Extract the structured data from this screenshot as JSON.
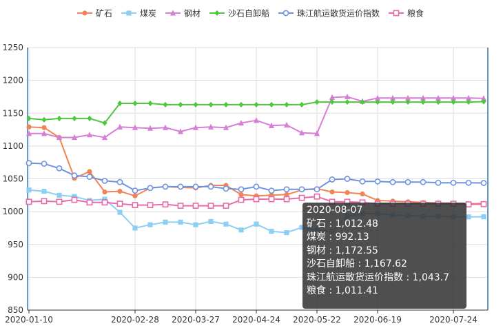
{
  "chart_data": {
    "type": "line",
    "x": [
      "2020-01-10",
      "2020-01-17",
      "2020-01-24",
      "2020-01-31",
      "2020-02-07",
      "2020-02-14",
      "2020-02-21",
      "2020-02-28",
      "2020-03-06",
      "2020-03-13",
      "2020-03-20",
      "2020-03-27",
      "2020-04-03",
      "2020-04-10",
      "2020-04-17",
      "2020-04-24",
      "2020-05-01",
      "2020-05-08",
      "2020-05-15",
      "2020-05-22",
      "2020-05-29",
      "2020-06-05",
      "2020-06-12",
      "2020-06-19",
      "2020-06-26",
      "2020-07-03",
      "2020-07-10",
      "2020-07-17",
      "2020-07-24",
      "2020-07-31",
      "2020-08-07"
    ],
    "x_tick_labels": [
      "2020-01-10",
      "2020-02-28",
      "2020-03-27",
      "2020-04-24",
      "2020-05-22",
      "2020-06-19",
      "2020-07-24"
    ],
    "ylim": [
      850,
      1250
    ],
    "y_ticks": [
      850,
      900,
      950,
      1000,
      1050,
      1100,
      1150,
      1200,
      1250
    ],
    "legend_position": "top-center",
    "grid": true,
    "series": [
      {
        "name": "矿石",
        "color": "#f08454",
        "marker": "circle-filled",
        "values": [
          1129,
          1128,
          1113,
          1051,
          1061,
          1030,
          1031,
          1024,
          1036,
          1038,
          1037,
          1036,
          1040,
          1040,
          1026,
          1024,
          1025,
          1026,
          1033,
          1035,
          1030,
          1029,
          1027,
          1017,
          1016,
          1015,
          1014,
          1013,
          1013,
          1012,
          1012.48
        ]
      },
      {
        "name": "煤炭",
        "color": "#8ccff5",
        "marker": "square",
        "values": [
          1033,
          1031,
          1025,
          1023,
          1017,
          1019,
          999,
          975,
          980,
          984,
          984,
          980,
          985,
          981,
          972,
          981,
          970,
          968,
          976,
          972,
          970,
          993,
          997,
          997,
          995,
          994,
          993,
          993,
          992,
          992,
          992.13
        ]
      },
      {
        "name": "钢材",
        "color": "#d77ed6",
        "marker": "triangle",
        "values": [
          1119,
          1119,
          1113,
          1113,
          1117,
          1113,
          1129,
          1128,
          1127,
          1128,
          1122,
          1128,
          1129,
          1128,
          1135,
          1139,
          1131,
          1132,
          1120,
          1119,
          1174,
          1175,
          1168,
          1173,
          1173,
          1173,
          1173,
          1173,
          1173,
          1173,
          1172.55
        ]
      },
      {
        "name": "沙石自卸船",
        "color": "#4cc83c",
        "marker": "diamond",
        "values": [
          1142,
          1140,
          1142,
          1142,
          1142,
          1135,
          1165,
          1165,
          1165,
          1163,
          1163,
          1163,
          1163,
          1163,
          1163,
          1163,
          1163,
          1163,
          1163,
          1167,
          1167,
          1167,
          1167,
          1167,
          1167,
          1167,
          1167,
          1167,
          1167,
          1167,
          1167.62
        ]
      },
      {
        "name": "珠江航运散货运价指数",
        "color": "#6e92e0",
        "marker": "circle-hollow",
        "values": [
          1074,
          1073,
          1066,
          1055,
          1053,
          1047,
          1045,
          1032,
          1036,
          1038,
          1038,
          1038,
          1038,
          1035,
          1034,
          1038,
          1032,
          1034,
          1034,
          1034,
          1049,
          1050,
          1046,
          1046,
          1045,
          1045,
          1045,
          1044,
          1044,
          1044,
          1043.7
        ]
      },
      {
        "name": "粮食",
        "color": "#e86aa8",
        "marker": "square-hollow",
        "values": [
          1015,
          1016,
          1015,
          1018,
          1014,
          1014,
          1012,
          1010,
          1010,
          1011,
          1009,
          1009,
          1009,
          1009,
          1018,
          1019,
          1019,
          1019,
          1021,
          1023,
          1015,
          1015,
          1014,
          1012,
          1012,
          1012,
          1012,
          1012,
          1012,
          1011,
          1011.41
        ]
      }
    ]
  },
  "tooltip": {
    "date": "2020-08-07",
    "lines": [
      "矿石 : 1,012.48",
      "煤炭 : 992.13",
      "钢材 : 1,172.55",
      "沙石自卸船 : 1,167.62",
      "珠江航运散货运价指数 : 1,043.7",
      "粮食 : 1,011.41"
    ]
  }
}
